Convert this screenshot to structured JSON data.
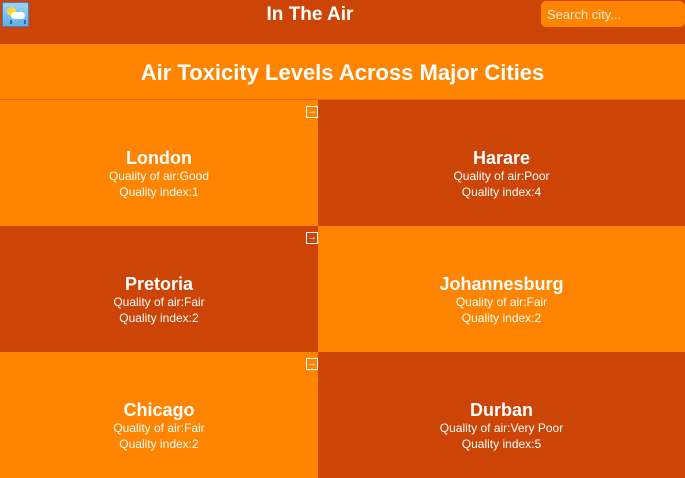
{
  "nav": {
    "title": "In The Air",
    "search_placeholder": "Search city...",
    "logo_icon": "weather-logo-icon"
  },
  "heading": "Air Toxicity Levels Across Major Cities",
  "colors": {
    "nav_bg": "#cc4506",
    "accent_orange": "#ff8400",
    "rust": "#cc4506",
    "text": "#ffffff"
  },
  "cities": [
    {
      "name": "London",
      "quality": "Quality of air:Good",
      "index": "Quality index:1"
    },
    {
      "name": "Harare",
      "quality": "Quality of air:Poor",
      "index": "Quality index:4"
    },
    {
      "name": "Pretoria",
      "quality": "Quality of air:Fair",
      "index": "Quality index:2"
    },
    {
      "name": "Johannesburg",
      "quality": "Quality of air:Fair",
      "index": "Quality index:2"
    },
    {
      "name": "Chicago",
      "quality": "Quality of air:Fair",
      "index": "Quality index:2"
    },
    {
      "name": "Durban",
      "quality": "Quality of air:Very Poor",
      "index": "Quality index:5"
    }
  ],
  "open_icon": "external-link-icon"
}
